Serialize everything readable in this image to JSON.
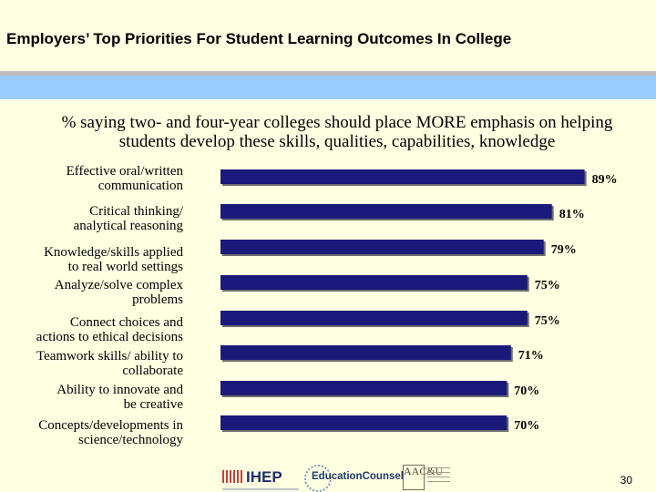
{
  "header": {
    "title": "Employers’ Top Priorities For Student Learning Outcomes In College"
  },
  "colors": {
    "background": "#FFFFE1",
    "band": "#99CCFF",
    "bar": "#1A1A7A"
  },
  "chart_data": {
    "type": "bar",
    "orientation": "horizontal",
    "title": "% saying two- and four-year colleges should place MORE emphasis on helping students develop these skills, qualities, capabilities, knowledge",
    "categories": [
      "Effective oral/written communication",
      "Critical thinking/ analytical reasoning",
      "Knowledge/skills applied to real world settings",
      "Analyze/solve complex problems",
      "Connect choices and actions to ethical decisions",
      "Teamwork skills/ ability to collaborate",
      "Ability to innovate and be creative",
      "Concepts/developments in science/technology"
    ],
    "values": [
      89,
      81,
      79,
      75,
      75,
      71,
      70,
      70
    ],
    "value_labels": [
      "89%",
      "81%",
      "79%",
      "75%",
      "75%",
      "71%",
      "70%",
      "70%"
    ],
    "xlim": [
      0,
      100
    ]
  },
  "labels": [
    {
      "lines": [
        "Effective oral/written",
        "communication"
      ]
    },
    {
      "lines": [
        "Critical thinking/",
        "analytical reasoning"
      ]
    },
    {
      "lines": [
        "Knowledge/skills applied",
        "to real world settings"
      ]
    },
    {
      "lines": [
        "Analyze/solve complex",
        "problems"
      ]
    },
    {
      "lines": [
        "Connect choices and",
        "actions to ethical decisions"
      ]
    },
    {
      "lines": [
        "Teamwork skills/ ability to",
        "collaborate"
      ]
    },
    {
      "lines": [
        "Ability to innovate and",
        "be creative"
      ]
    },
    {
      "lines": [
        "Concepts/developments in",
        "science/technology"
      ]
    }
  ],
  "footer": {
    "logos": {
      "ihep": "IHEP",
      "education_counsel": "EducationCounsel",
      "aacu": "AAC&U"
    },
    "page_number": "30"
  }
}
